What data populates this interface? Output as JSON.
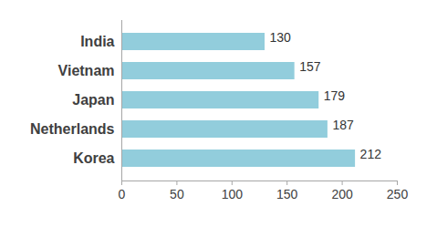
{
  "chart_data": {
    "type": "bar",
    "orientation": "horizontal",
    "categories": [
      "India",
      "Vietnam",
      "Japan",
      "Netherlands",
      "Korea"
    ],
    "values": [
      130,
      157,
      179,
      187,
      212
    ],
    "color": "#92cddc",
    "xlim": [
      0,
      250
    ],
    "xticks": [
      0,
      50,
      100,
      150,
      200,
      250
    ],
    "grid": false,
    "data_labels": true
  }
}
